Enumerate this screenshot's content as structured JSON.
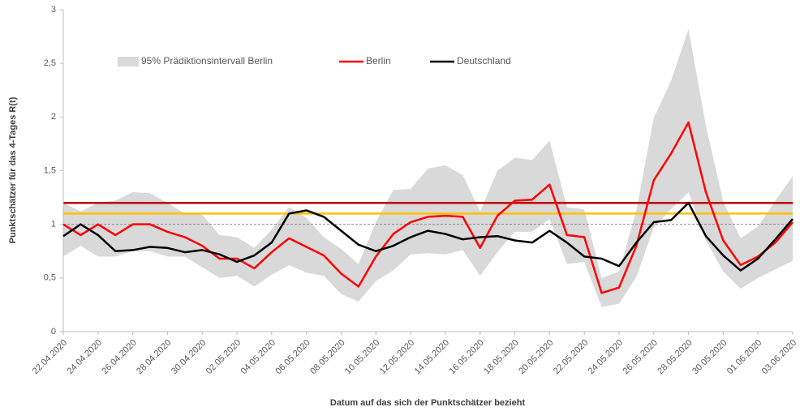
{
  "chart_data": {
    "type": "line",
    "y_label": "Punktschätzer für das 4-Tages R(t)",
    "x_label": "Datum auf das sich der Punktschätzer bezieht",
    "categories": [
      "22.04.2020",
      null,
      "24.04.2020",
      null,
      "26.04.2020",
      null,
      "28.04.2020",
      null,
      "30.04.2020",
      null,
      "02.05.2020",
      null,
      "04.05.2020",
      null,
      "06.05.2020",
      null,
      "08.05.2020",
      null,
      "10.05.2020",
      null,
      "12.05.2020",
      null,
      "14.05.2020",
      null,
      "16.05.2020",
      null,
      "18.05.2020",
      null,
      "20.05.2020",
      null,
      "22.05.2020",
      null,
      "24.05.2020",
      null,
      "26.05.2020",
      null,
      "28.05.2020",
      null,
      "30.05.2020",
      null,
      "01.06.2020",
      null,
      "03.06.2020"
    ],
    "band": {
      "name": "95% Prädiktionsintervall Berlin",
      "color": "#d9d9d9",
      "upper": [
        1.2,
        1.12,
        1.2,
        1.22,
        1.3,
        1.29,
        1.2,
        1.1,
        1.09,
        0.9,
        0.88,
        0.78,
        0.95,
        1.16,
        1.06,
        0.88,
        0.77,
        0.63,
        1.02,
        1.32,
        1.33,
        1.52,
        1.55,
        1.46,
        1.12,
        1.5,
        1.62,
        1.6,
        1.78,
        1.16,
        1.14,
        0.5,
        0.56,
        1.13,
        1.99,
        2.34,
        2.82,
        1.92,
        1.21,
        0.87,
        0.98,
        1.22,
        1.45
      ],
      "lower": [
        0.7,
        0.8,
        0.7,
        0.7,
        0.75,
        0.75,
        0.7,
        0.7,
        0.6,
        0.5,
        0.52,
        0.42,
        0.53,
        0.62,
        0.55,
        0.52,
        0.35,
        0.28,
        0.47,
        0.57,
        0.72,
        0.73,
        0.72,
        0.76,
        0.52,
        0.74,
        0.93,
        0.93,
        1.05,
        0.63,
        0.65,
        0.23,
        0.26,
        0.51,
        0.97,
        1.14,
        1.3,
        0.85,
        0.56,
        0.4,
        0.5,
        0.58,
        0.66
      ]
    },
    "series": [
      {
        "name": "Berlin",
        "color": "#ff0000",
        "values": [
          1.0,
          0.9,
          1.0,
          0.9,
          1.0,
          1.0,
          0.93,
          0.88,
          0.8,
          0.68,
          0.68,
          0.59,
          0.74,
          0.87,
          0.79,
          0.71,
          0.54,
          0.42,
          0.7,
          0.91,
          1.02,
          1.07,
          1.08,
          1.07,
          0.78,
          1.08,
          1.22,
          1.23,
          1.37,
          0.9,
          0.88,
          0.36,
          0.41,
          0.8,
          1.41,
          1.66,
          1.95,
          1.3,
          0.85,
          0.62,
          0.7,
          0.83,
          1.02
        ]
      },
      {
        "name": "Deutschland",
        "color": "#000000",
        "values": [
          0.89,
          1.0,
          0.9,
          0.75,
          0.76,
          0.79,
          0.78,
          0.74,
          0.76,
          0.72,
          0.65,
          0.71,
          0.83,
          1.1,
          1.13,
          1.07,
          0.94,
          0.81,
          0.75,
          0.8,
          0.88,
          0.94,
          0.91,
          0.86,
          0.88,
          0.89,
          0.85,
          0.83,
          0.94,
          0.83,
          0.7,
          0.68,
          0.61,
          0.83,
          1.02,
          1.04,
          1.2,
          0.89,
          0.71,
          0.57,
          0.68,
          0.86,
          1.05
        ]
      }
    ],
    "reference_lines": [
      {
        "value": 1.2,
        "color": "#c00000",
        "style": "solid"
      },
      {
        "value": 1.1,
        "color": "#ffc000",
        "style": "solid"
      },
      {
        "value": 1.0,
        "color": "#7f7f7f",
        "style": "dashed"
      }
    ],
    "ylim": [
      0,
      3
    ],
    "yticks": [
      0,
      {
        "value": 0.5,
        "label": "0,5"
      },
      1,
      {
        "value": 1.5,
        "label": "1,5"
      },
      2,
      {
        "value": 2.5,
        "label": "2,5"
      },
      3
    ],
    "grid": false
  }
}
